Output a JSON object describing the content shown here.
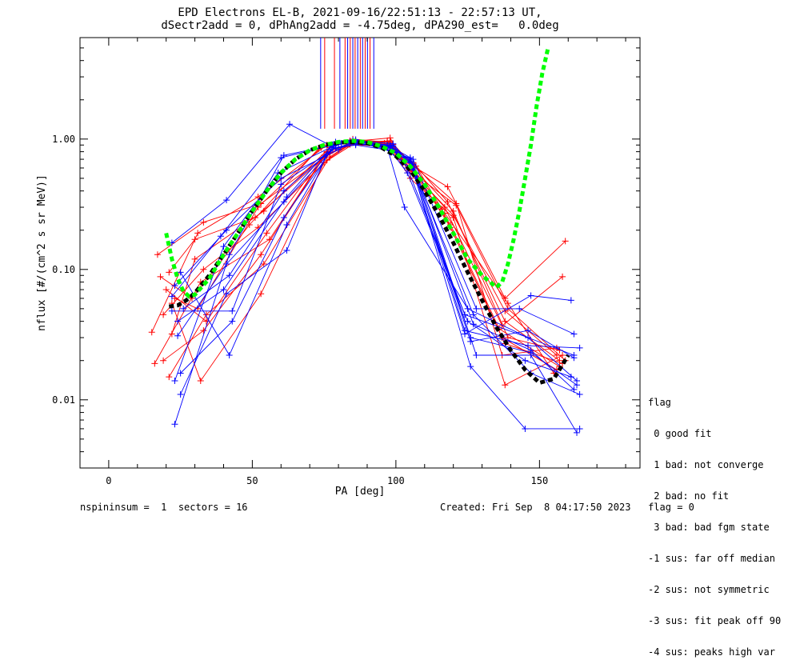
{
  "header": {
    "title_line1": "EPD Electrons EL-B, 2021-09-16/22:51:13 - 22:57:13 UT,",
    "title_line2": "dSectr2add = 0, dPhAng2add = -4.75deg, dPA290_est=   0.0deg"
  },
  "flag_legend": {
    "title": "flag",
    "items": [
      " 0 good fit",
      " 1 bad: not converge",
      " 2 bad: no fit",
      " 3 bad: bad fgm state",
      "-1 sus: far off median",
      "-2 sus: not symmetric",
      "-3 sus: fit peak off 90",
      "-4 sus: peaks high var"
    ]
  },
  "footer": {
    "left": "nspininsum =  1  sectors = 16",
    "right": "Created: Fri Sep  8 04:17:50 2023   flag = 0"
  },
  "colors": {
    "red": "#ff0000",
    "blue": "#0000ff",
    "green_fit": "#00ff00",
    "black_fit": "#000000",
    "axes": "#000000"
  },
  "chart_data": {
    "type": "line",
    "xlabel": "PA [deg]",
    "ylabel": "nflux [#/(cm^2 s sr MeV)]",
    "xlim": [
      -10,
      185
    ],
    "ylim": [
      0.003,
      6.0
    ],
    "yscale": "log",
    "x_ticks": [
      0,
      50,
      100,
      150
    ],
    "x_tick_labels": [
      "0",
      "50",
      "100",
      "150"
    ],
    "y_ticks": [
      0.01,
      0.1,
      1.0
    ],
    "y_tick_labels": [
      "0.01",
      "0.10",
      "1.00"
    ],
    "grid": false,
    "vertical_markers": {
      "y_range": [
        1.2,
        6.0
      ],
      "red_x": [
        75.2,
        78.6,
        82.3,
        84.1,
        85.8,
        87.6,
        89.3,
        91.0
      ],
      "blue_x": [
        73.8,
        80.5,
        83.2,
        85.0,
        86.7,
        88.4,
        90.1,
        92.3
      ]
    },
    "green_fit": {
      "x": [
        20,
        22,
        24,
        26,
        28,
        30,
        35,
        40,
        45,
        50,
        55,
        60,
        65,
        70,
        75,
        80,
        85,
        90,
        95,
        100,
        105,
        110,
        115,
        120,
        125,
        130,
        135,
        137,
        139,
        141,
        143,
        145,
        147,
        149,
        151,
        153
      ],
      "y": [
        0.19,
        0.12,
        0.085,
        0.068,
        0.062,
        0.064,
        0.085,
        0.13,
        0.19,
        0.28,
        0.4,
        0.55,
        0.7,
        0.82,
        0.9,
        0.95,
        0.97,
        0.95,
        0.88,
        0.78,
        0.62,
        0.45,
        0.3,
        0.19,
        0.12,
        0.09,
        0.073,
        0.08,
        0.11,
        0.17,
        0.28,
        0.5,
        0.9,
        1.8,
        3.2,
        5.0
      ]
    },
    "black_fit": {
      "x": [
        21,
        24,
        27,
        30,
        35,
        40,
        45,
        50,
        55,
        60,
        65,
        70,
        75,
        80,
        85,
        90,
        95,
        100,
        105,
        110,
        115,
        120,
        125,
        130,
        135,
        140,
        145,
        150,
        155,
        160
      ],
      "y": [
        0.052,
        0.053,
        0.058,
        0.066,
        0.09,
        0.13,
        0.19,
        0.28,
        0.4,
        0.55,
        0.7,
        0.82,
        0.9,
        0.94,
        0.95,
        0.93,
        0.86,
        0.74,
        0.58,
        0.4,
        0.26,
        0.16,
        0.095,
        0.058,
        0.036,
        0.024,
        0.017,
        0.0135,
        0.0145,
        0.022
      ]
    },
    "series": [
      {
        "color": "red",
        "x": [
          17,
          33,
          53,
          77,
          86,
          98,
          106,
          118,
          138,
          159
        ],
        "y": [
          0.13,
          0.23,
          0.32,
          0.78,
          0.92,
          0.88,
          0.62,
          0.43,
          0.06,
          0.165
        ]
      },
      {
        "color": "red",
        "x": [
          15,
          31,
          52,
          76,
          85,
          98,
          106,
          117,
          137,
          158
        ],
        "y": [
          0.033,
          0.19,
          0.36,
          0.9,
          1.0,
          0.94,
          0.55,
          0.3,
          0.037,
          0.088
        ]
      },
      {
        "color": "red",
        "x": [
          18,
          29,
          49,
          73,
          84,
          97,
          106,
          120,
          139,
          157
        ],
        "y": [
          0.088,
          0.06,
          0.22,
          0.84,
          0.97,
          0.9,
          0.6,
          0.28,
          0.03,
          0.024
        ]
      },
      {
        "color": "red",
        "x": [
          19,
          33,
          53,
          76,
          85,
          97,
          107,
          120,
          138,
          156
        ],
        "y": [
          0.02,
          0.034,
          0.13,
          0.79,
          0.95,
          0.92,
          0.52,
          0.26,
          0.048,
          0.022
        ]
      },
      {
        "color": "red",
        "x": [
          21,
          34,
          54,
          77,
          84,
          96,
          107,
          119,
          138,
          158
        ],
        "y": [
          0.015,
          0.045,
          0.11,
          0.73,
          0.92,
          0.88,
          0.55,
          0.21,
          0.027,
          0.019
        ]
      },
      {
        "color": "red",
        "x": [
          22,
          32,
          53,
          75,
          86,
          98,
          106,
          121,
          137,
          156
        ],
        "y": [
          0.055,
          0.014,
          0.065,
          0.66,
          0.94,
          0.97,
          0.63,
          0.32,
          0.022,
          0.025
        ]
      },
      {
        "color": "red",
        "x": [
          21,
          30,
          51,
          75,
          85,
          98,
          104,
          117,
          139,
          155
        ],
        "y": [
          0.095,
          0.17,
          0.25,
          0.72,
          0.96,
          1.02,
          0.58,
          0.27,
          0.055,
          0.016
        ]
      },
      {
        "color": "red",
        "x": [
          16,
          32,
          56,
          76,
          86,
          97,
          105,
          120,
          138,
          158
        ],
        "y": [
          0.019,
          0.08,
          0.17,
          0.8,
          0.93,
          0.96,
          0.5,
          0.25,
          0.013,
          0.022
        ]
      },
      {
        "color": "red",
        "x": [
          22,
          30,
          54,
          77,
          84,
          96,
          106,
          118,
          138,
          157
        ],
        "y": [
          0.032,
          0.12,
          0.28,
          0.86,
          0.97,
          0.93,
          0.66,
          0.33,
          0.04,
          0.02
        ]
      },
      {
        "color": "red",
        "x": [
          23,
          31,
          52,
          74,
          85,
          99,
          105,
          121,
          139,
          159
        ],
        "y": [
          0.06,
          0.05,
          0.3,
          0.86,
          0.99,
          0.91,
          0.57,
          0.31,
          0.05,
          0.02
        ]
      },
      {
        "color": "red",
        "x": [
          19,
          33,
          52,
          76,
          84,
          99,
          107,
          116,
          137,
          156
        ],
        "y": [
          0.045,
          0.1,
          0.21,
          0.69,
          0.91,
          0.87,
          0.62,
          0.29,
          0.03,
          0.017
        ]
      },
      {
        "color": "red",
        "x": [
          20,
          34,
          55,
          75,
          86,
          97,
          105,
          119,
          136,
          157
        ],
        "y": [
          0.07,
          0.04,
          0.19,
          0.75,
          0.95,
          0.95,
          0.6,
          0.22,
          0.035,
          0.018
        ]
      },
      {
        "color": "blue",
        "x": [
          22,
          41,
          63,
          79,
          86,
          98,
          106,
          128,
          143,
          162
        ],
        "y": [
          0.16,
          0.34,
          1.3,
          0.85,
          0.9,
          0.82,
          0.7,
          0.05,
          0.05,
          0.032
        ]
      },
      {
        "color": "blue",
        "x": [
          23,
          42,
          61,
          78,
          85,
          98,
          105,
          126,
          145,
          164
        ],
        "y": [
          0.0065,
          0.13,
          0.75,
          0.9,
          0.96,
          0.88,
          0.68,
          0.018,
          0.006,
          0.006
        ]
      },
      {
        "color": "blue",
        "x": [
          25,
          41,
          62,
          77,
          86,
          97,
          105,
          124,
          147,
          161
        ],
        "y": [
          0.011,
          0.065,
          0.14,
          0.88,
          0.97,
          0.9,
          0.66,
          0.032,
          0.063,
          0.058
        ]
      },
      {
        "color": "blue",
        "x": [
          25,
          42,
          62,
          78,
          84,
          97,
          106,
          128,
          147,
          163
        ],
        "y": [
          0.095,
          0.022,
          0.22,
          0.88,
          0.95,
          0.86,
          0.64,
          0.022,
          0.022,
          0.0056
        ]
      },
      {
        "color": "blue",
        "x": [
          22,
          43,
          60,
          79,
          86,
          97,
          103,
          125,
          146,
          162
        ],
        "y": [
          0.048,
          0.048,
          0.45,
          0.86,
          0.92,
          0.86,
          0.3,
          0.05,
          0.03,
          0.022
        ]
      },
      {
        "color": "blue",
        "x": [
          24,
          41,
          61,
          80,
          85,
          98,
          104,
          124,
          146,
          163
        ],
        "y": [
          0.031,
          0.11,
          0.33,
          0.92,
          0.96,
          0.9,
          0.6,
          0.045,
          0.03,
          0.014
        ]
      },
      {
        "color": "blue",
        "x": [
          23,
          40,
          59,
          79,
          84,
          98,
          105,
          127,
          147,
          162
        ],
        "y": [
          0.014,
          0.15,
          0.55,
          0.9,
          0.94,
          0.88,
          0.72,
          0.038,
          0.024,
          0.012
        ]
      },
      {
        "color": "blue",
        "x": [
          26,
          42,
          61,
          78,
          86,
          99,
          106,
          124,
          146,
          164
        ],
        "y": [
          0.05,
          0.09,
          0.4,
          0.84,
          0.95,
          0.89,
          0.62,
          0.034,
          0.026,
          0.025
        ]
      },
      {
        "color": "blue",
        "x": [
          22,
          39,
          60,
          81,
          85,
          98,
          104,
          125,
          145,
          161
        ],
        "y": [
          0.062,
          0.18,
          0.72,
          0.93,
          0.96,
          0.82,
          0.55,
          0.04,
          0.02,
          0.015
        ]
      },
      {
        "color": "blue",
        "x": [
          24,
          40,
          62,
          79,
          86,
          96,
          106,
          126,
          147,
          163
        ],
        "y": [
          0.04,
          0.07,
          0.36,
          0.95,
          0.99,
          0.85,
          0.58,
          0.03,
          0.023,
          0.013
        ]
      },
      {
        "color": "blue",
        "x": [
          23,
          41,
          60,
          80,
          84,
          97,
          105,
          126,
          146,
          162
        ],
        "y": [
          0.075,
          0.2,
          0.5,
          0.83,
          0.93,
          0.87,
          0.7,
          0.028,
          0.034,
          0.021
        ]
      },
      {
        "color": "blue",
        "x": [
          25,
          43,
          61,
          79,
          85,
          99,
          106,
          127,
          147,
          164
        ],
        "y": [
          0.016,
          0.04,
          0.25,
          0.91,
          0.98,
          0.92,
          0.6,
          0.045,
          0.016,
          0.011
        ]
      }
    ]
  }
}
